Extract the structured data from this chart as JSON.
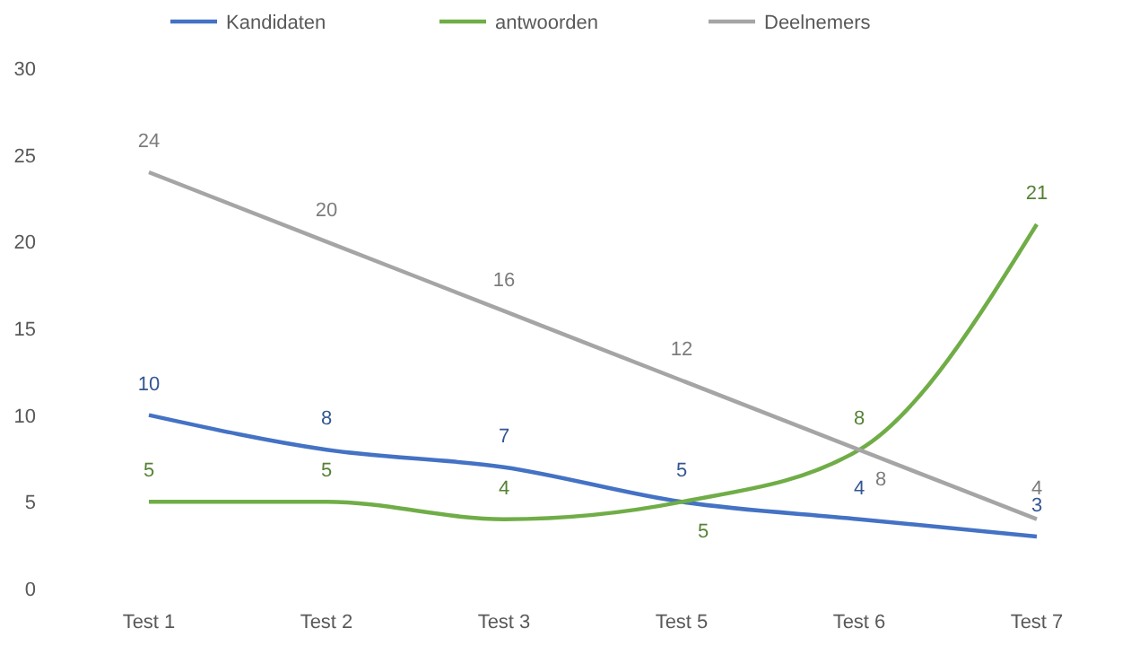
{
  "chart_data": {
    "type": "line",
    "categories": [
      "Test 1",
      "Test 2",
      "Test 3",
      "Test 5",
      "Test 6",
      "Test 7"
    ],
    "series": [
      {
        "name": "Kandidaten",
        "color": "#4472c4",
        "values": [
          10,
          8,
          7,
          5,
          4,
          3
        ]
      },
      {
        "name": "antwoorden",
        "color": "#70ad47",
        "values": [
          5,
          5,
          4,
          5,
          8,
          21
        ]
      },
      {
        "name": "Deelnemers",
        "color": "#a5a5a5",
        "values": [
          24,
          20,
          16,
          12,
          8,
          4
        ]
      }
    ],
    "ylim": [
      0,
      30
    ],
    "yticks": [
      0,
      5,
      10,
      15,
      20,
      25,
      30
    ],
    "grid": false,
    "legend": "top",
    "data_labels": true,
    "marker": "none",
    "line_style": "solid"
  }
}
